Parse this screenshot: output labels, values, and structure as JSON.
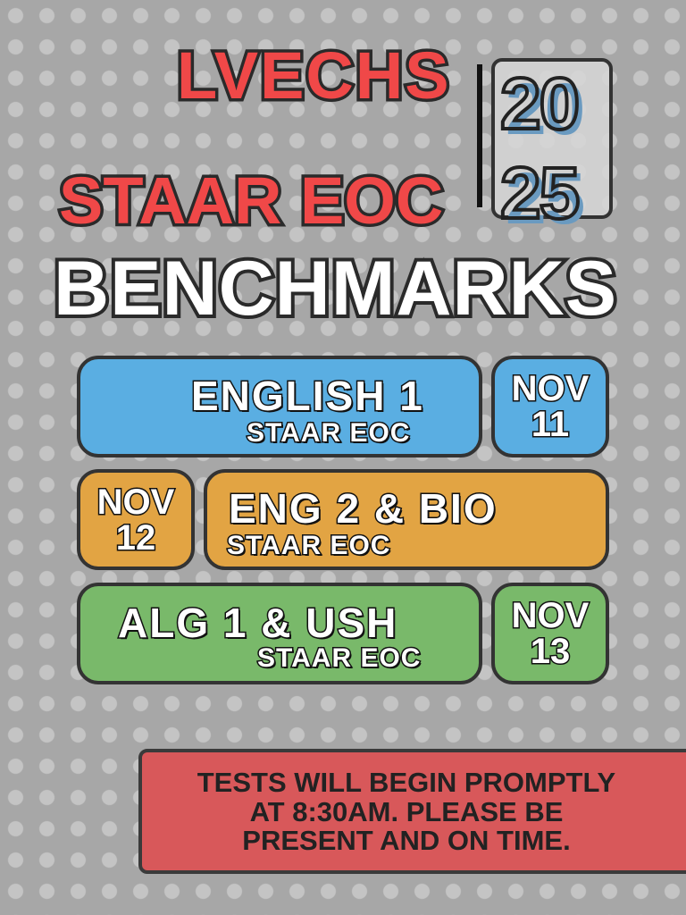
{
  "header": {
    "school": "LVECHS",
    "subtitle": "STAAR EOC",
    "year_top": "20",
    "year_bottom": "25",
    "title": "BENCHMARKS"
  },
  "tests": [
    {
      "subject": "ENGLISH 1",
      "label": "STAAR EOC",
      "month": "NOV",
      "day": "11",
      "color": "#5aaee2"
    },
    {
      "subject": "ENG 2 & BIO",
      "label": "STAAR EOC",
      "month": "NOV",
      "day": "12",
      "color": "#e2a443"
    },
    {
      "subject": "ALG 1 & USH",
      "label": "STAAR EOC",
      "month": "NOV",
      "day": "13",
      "color": "#79b96a"
    }
  ],
  "notice": {
    "lines": [
      "TESTS WILL BEGIN PROMPTLY",
      "AT 8:30AM.  PLEASE BE",
      "PRESENT AND ON TIME."
    ]
  },
  "colors": {
    "accent_red": "#f04848",
    "background": "#a7a7a7",
    "banner": "#d8585a",
    "year_shadow": "#6a9ac0"
  }
}
